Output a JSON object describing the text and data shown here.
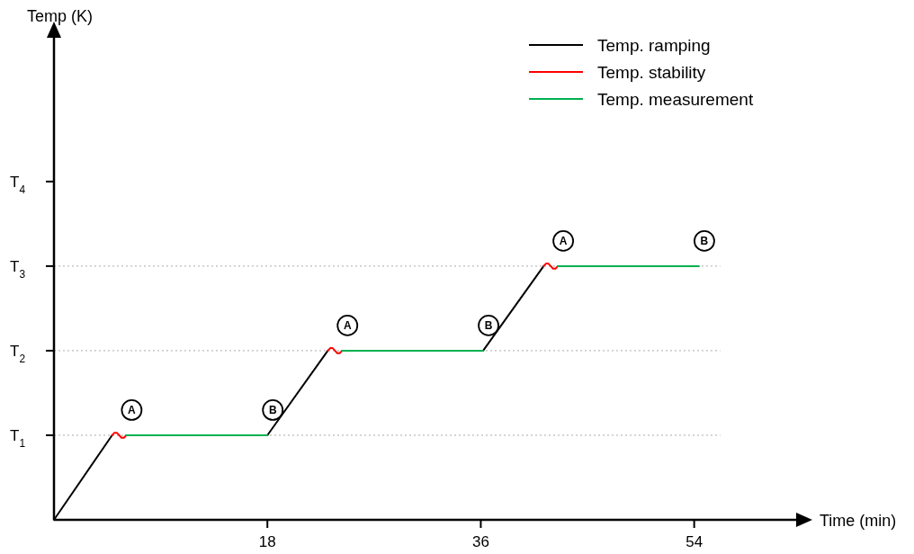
{
  "chart_data": {
    "type": "line",
    "xlabel": "Time (min)",
    "ylabel": "Temp (K)",
    "xlim": [
      0,
      62.6
    ],
    "ylim": [
      0,
      5.7
    ],
    "xticks": [
      18,
      36,
      54
    ],
    "yticks": [
      {
        "value": 1,
        "label": "T$_{1}$"
      },
      {
        "value": 2,
        "label": "T$_{2}$"
      },
      {
        "value": 3,
        "label": "T$_{3}$"
      },
      {
        "value": 4,
        "label": "T$_{4}$"
      }
    ],
    "series": [
      {
        "name": "Temp. ramping",
        "color": "#000000",
        "x": [
          0,
          4.9
        ],
        "values": [
          0,
          1
        ]
      },
      {
        "color": "#000000",
        "x": [
          18,
          23.1
        ],
        "values": [
          1,
          2
        ]
      },
      {
        "color": "#000000",
        "x": [
          36.2,
          41.3
        ],
        "values": [
          2,
          3
        ]
      },
      {
        "name": "Temp. stability",
        "color": "#ff0000",
        "x": [
          4.9,
          5.1,
          5.3,
          5.5,
          5.7,
          5.9,
          6.1
        ],
        "values": [
          1,
          1.03,
          1.03,
          1,
          0.97,
          0.97,
          1
        ]
      },
      {
        "color": "#ff0000",
        "x": [
          23.1,
          23.3,
          23.5,
          23.7,
          23.9,
          24.1,
          24.3
        ],
        "values": [
          2,
          2.03,
          2.03,
          2,
          1.97,
          1.97,
          2
        ]
      },
      {
        "color": "#ff0000",
        "x": [
          41.3,
          41.5,
          41.7,
          41.9,
          42.1,
          42.3,
          42.5
        ],
        "values": [
          3,
          3.03,
          3.03,
          3,
          2.97,
          2.97,
          3
        ]
      },
      {
        "name": "Temp. measurement",
        "color": "#00b050",
        "x": [
          6.1,
          18
        ],
        "values": [
          1,
          1
        ]
      },
      {
        "color": "#00b050",
        "x": [
          24.3,
          36.2
        ],
        "values": [
          2,
          2
        ]
      },
      {
        "color": "#00b050",
        "x": [
          42.5,
          54.4
        ],
        "values": [
          3,
          3
        ]
      }
    ],
    "ref_lines": [
      {
        "axis": "y",
        "value": 1,
        "color": "#aaaaaa",
        "line_style": "dotted"
      },
      {
        "axis": "y",
        "value": 2,
        "color": "#aaaaaa",
        "line_style": "dotted"
      },
      {
        "axis": "y",
        "value": 3,
        "color": "#aaaaaa",
        "line_style": "dotted"
      }
    ],
    "annotations": [
      {
        "text": "A",
        "x": 6.1,
        "y": 1
      },
      {
        "text": "B",
        "x": 18,
        "y": 1
      },
      {
        "text": "A",
        "x": 24.3,
        "y": 2
      },
      {
        "text": "B",
        "x": 36.2,
        "y": 2
      },
      {
        "text": "A",
        "x": 42.5,
        "y": 3
      },
      {
        "text": "B",
        "x": 54.4,
        "y": 3
      }
    ],
    "legend": "top right",
    "marker": "none",
    "line_style": "solid"
  }
}
